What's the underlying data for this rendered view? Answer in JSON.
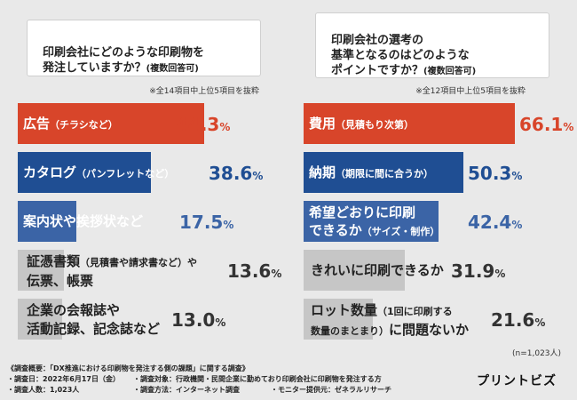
{
  "left_panel": {
    "question": "印刷会社にどのような印刷物を\n発注していますか？",
    "question_note": "(複数回答可)",
    "extract_note": "※全14項目中上位5項目を抜粋"
  },
  "right_panel": {
    "question": "印刷会社の選考の\n基準となるのはどのような\nポイントですか？",
    "question_note": "(複数回答可)",
    "extract_note": "※全12項目中上位5項目を抜粋"
  },
  "chart_data": [
    {
      "type": "bar",
      "orientation": "horizontal",
      "title": "印刷会社にどのような印刷物を発注していますか？(複数回答可)",
      "categories": [
        "広告（チラシなど）",
        "カタログ（パンフレットなど）",
        "案内状や挨拶状など",
        "証憑書類（見積書や請求書など）や伝票、帳票",
        "企業の会報誌や活動記録、記念誌など"
      ],
      "values": [
        44.3,
        38.6,
        17.5,
        13.6,
        13.0
      ],
      "unit": "%",
      "colors": [
        "#d8452a",
        "#1f4e93",
        "#3b64a6",
        "#c6c6c6",
        "#c6c6c6"
      ]
    },
    {
      "type": "bar",
      "orientation": "horizontal",
      "title": "印刷会社の選考の基準となるのはどのようなポイントですか？(複数回答可)",
      "categories": [
        "費用（見積もり次第）",
        "納期（期限に間に合うか）",
        "希望どおりに印刷できるか（サイズ・制作）",
        "きれいに印刷できるか",
        "ロット数量（1回に印刷する数量のまとまり）に問題ないか"
      ],
      "values": [
        66.1,
        50.3,
        42.4,
        31.9,
        21.6
      ],
      "unit": "%",
      "colors": [
        "#d8452a",
        "#1f4e93",
        "#3b64a6",
        "#c6c6c6",
        "#c6c6c6"
      ]
    }
  ],
  "bar_labels": {
    "left": [
      {
        "main": "広告",
        "sub": "（チラシなど）"
      },
      {
        "main": "カタログ",
        "sub": "（パンフレットなど）"
      },
      {
        "main": "案内状や挨拶状など",
        "sub": ""
      },
      {
        "main": "証憑書類",
        "sub": "（見積書や請求書など）や",
        "line2": "伝票、帳票"
      },
      {
        "main": "企業の会報誌や",
        "sub": "",
        "line2": "活動記録、記念誌など"
      }
    ],
    "right": [
      {
        "main": "費用",
        "sub": "（見積もり次第）"
      },
      {
        "main": "納期",
        "sub": "（期限に間に合うか）"
      },
      {
        "main": "希望どおりに印刷",
        "sub": "",
        "line2": "できるか",
        "line2sub": "（サイズ・制作）"
      },
      {
        "main": "きれいに印刷できるか",
        "sub": ""
      },
      {
        "main": "ロット数量",
        "sub": "（1回に印刷する",
        "line2": "数量のまとまり）",
        "line2tail": "に問題ないか"
      }
    ]
  },
  "value_text": {
    "left": [
      {
        "num": "44.3",
        "unit": "%"
      },
      {
        "num": "38.6",
        "unit": "%"
      },
      {
        "num": "17.5",
        "unit": "%"
      },
      {
        "num": "13.6",
        "unit": "%"
      },
      {
        "num": "13.0",
        "unit": "%"
      }
    ],
    "right": [
      {
        "num": "66.1",
        "unit": "%"
      },
      {
        "num": "50.3",
        "unit": "%"
      },
      {
        "num": "42.4",
        "unit": "%"
      },
      {
        "num": "31.9",
        "unit": "%"
      },
      {
        "num": "21.6",
        "unit": "%"
      }
    ]
  },
  "n_note": "(n=1,023人)",
  "footer": {
    "line1": "《調査概要：「DX推進における印刷物を発注する側の課題」に関する調査》",
    "line2a": "・調査日：2022年6月17日（金）",
    "line2b": "・調査対象：行政機関・民間企業に勤めており印刷会社に印刷物を発注する方",
    "line3a": "・調査人数：1,023人",
    "line3b": "・調査方法：インターネット調査",
    "line3c": "・モニター提供元：ゼネラルリサーチ"
  },
  "logo_text": "プリントビズ"
}
